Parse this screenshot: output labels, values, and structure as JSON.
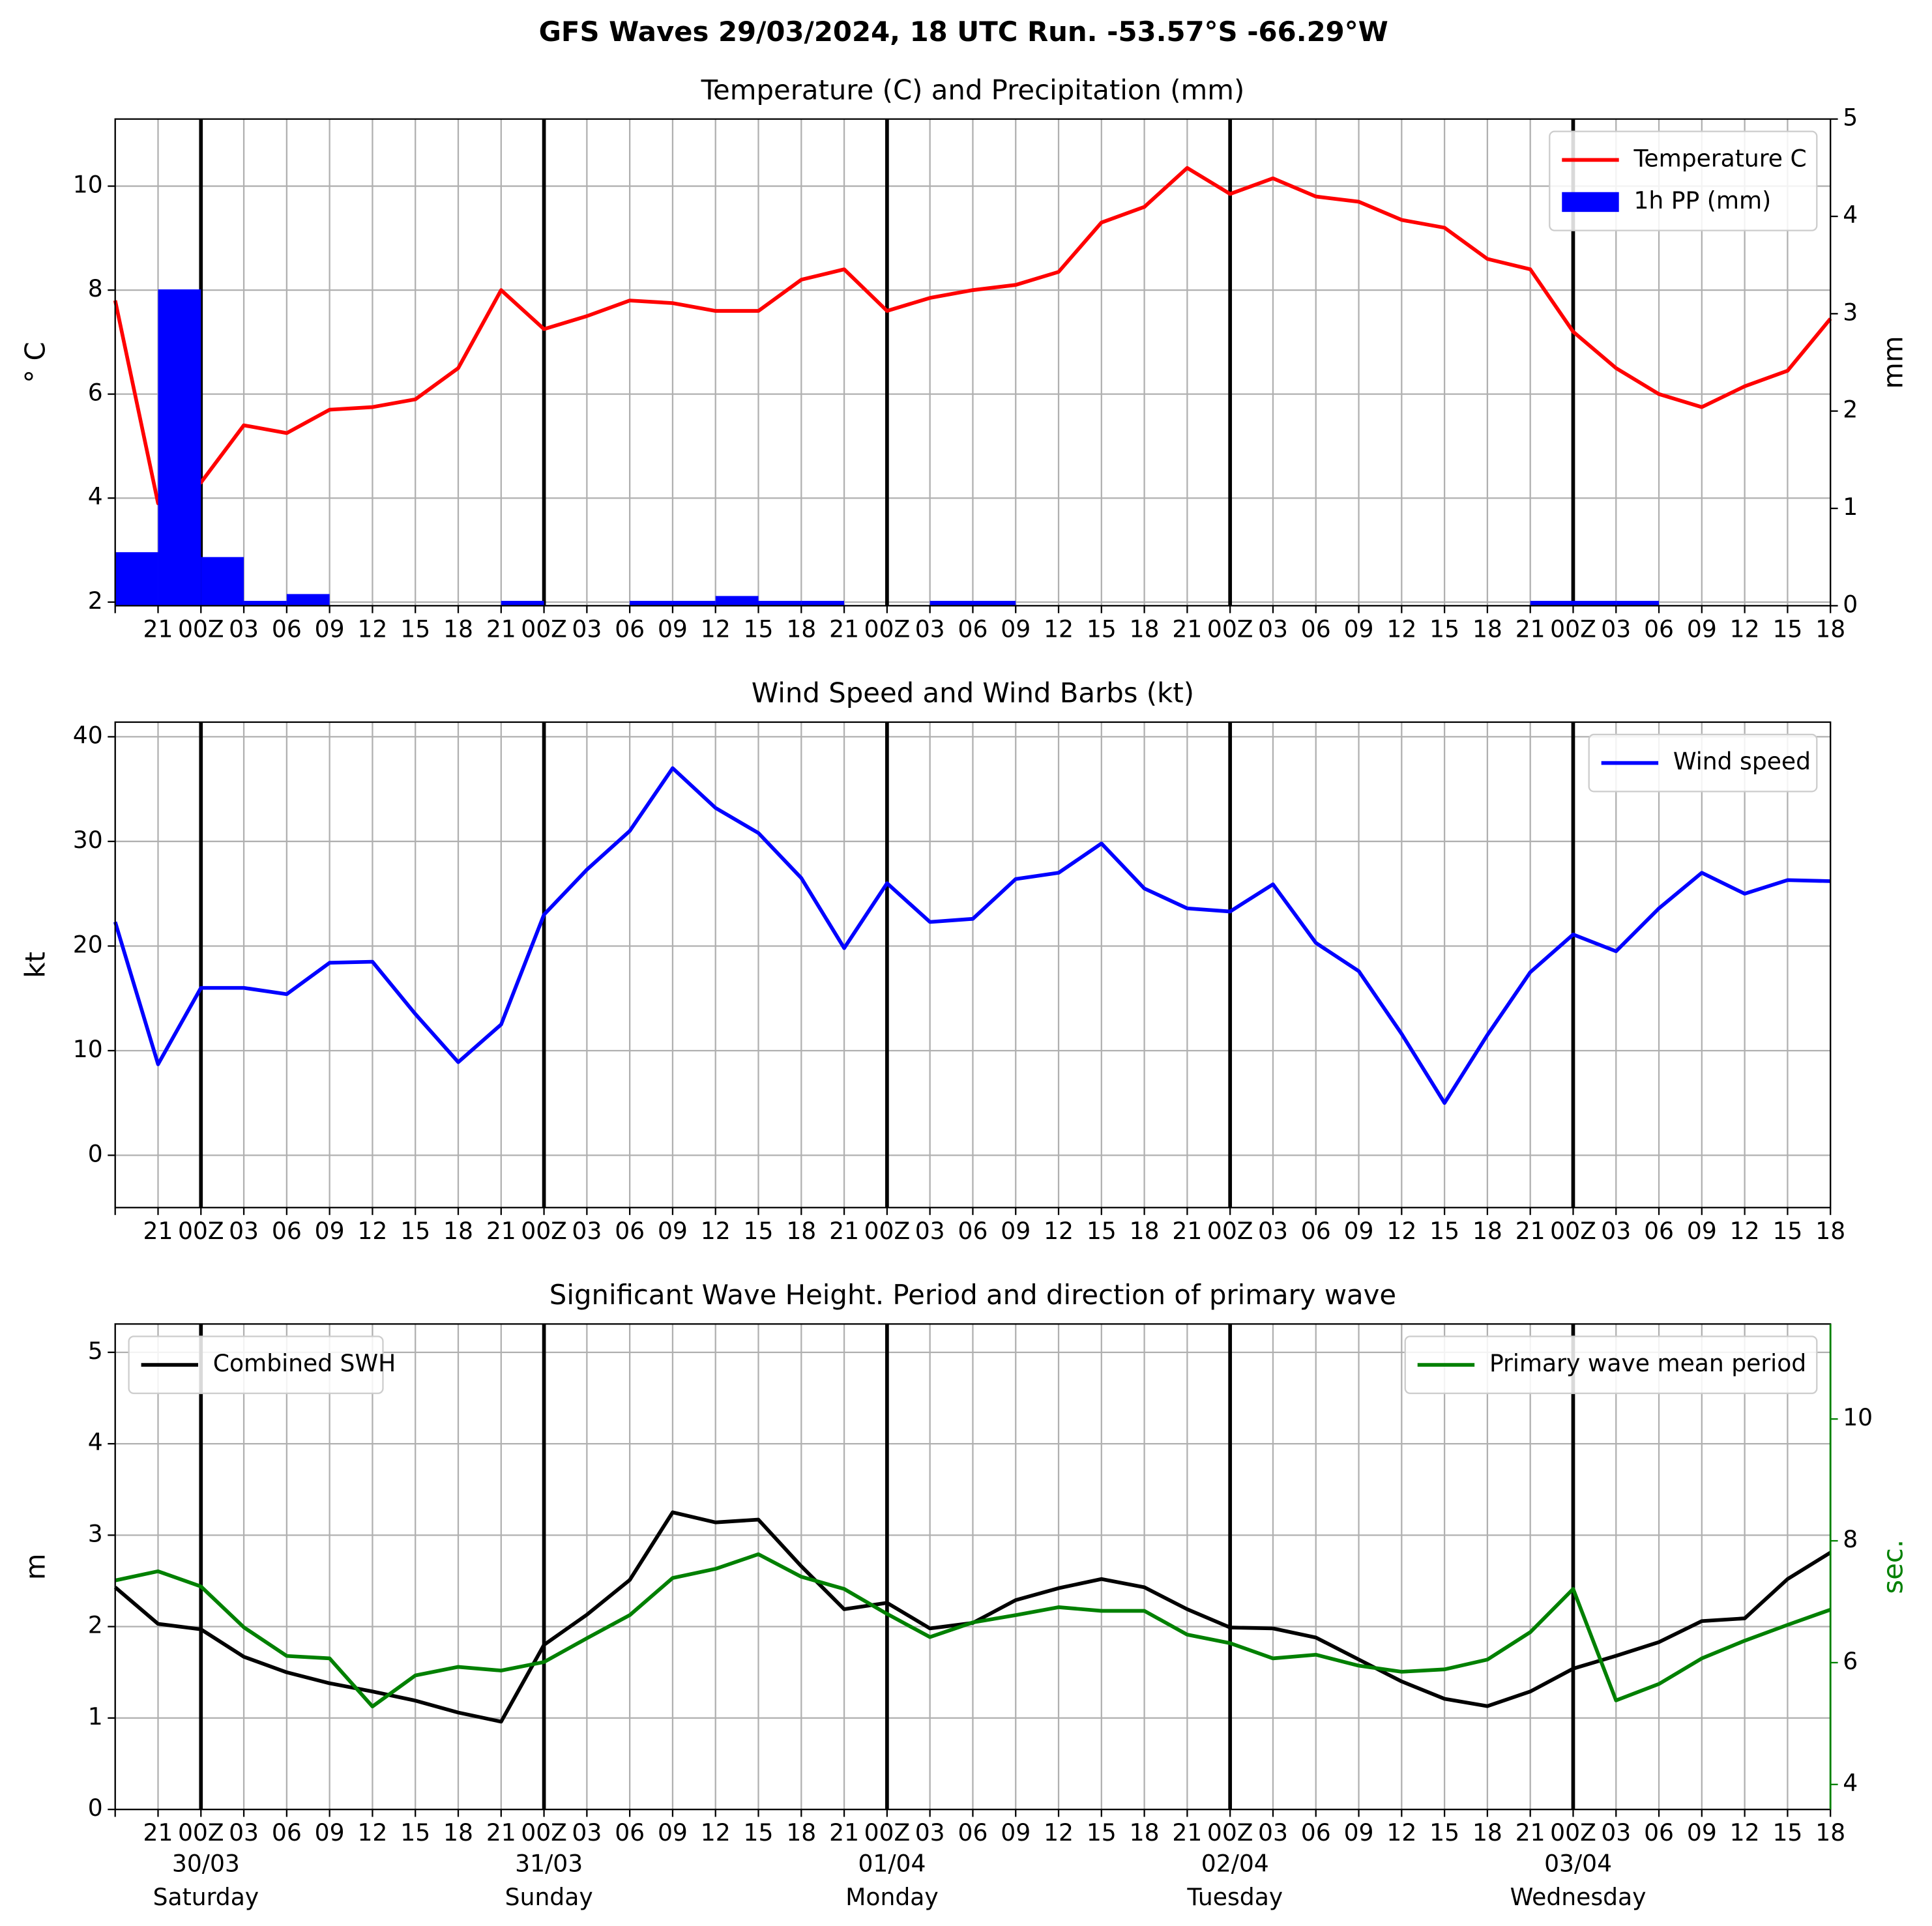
{
  "title": "GFS Waves 29/03/2024, 18 UTC Run. -53.57°S -66.29°W",
  "chart_data": [
    {
      "type": "line",
      "title": "Temperature (C) and Precipitation (mm)",
      "categories": [
        null,
        "21",
        "00Z",
        "03",
        "06",
        "09",
        "12",
        "15",
        "18",
        "21",
        "00Z",
        "03",
        "06",
        "09",
        "12",
        "15",
        "18",
        "21",
        "00Z",
        "03",
        "06",
        "09",
        "12",
        "15",
        "18",
        "21",
        "00Z",
        "03",
        "06",
        "09",
        "12",
        "15",
        "18",
        "21",
        "00Z",
        "03",
        "06",
        "09",
        "12",
        "15",
        "18"
      ],
      "series": [
        {
          "name": "Temperature C",
          "color": "#ff0000",
          "values": [
            7.8,
            3.9,
            4.3,
            5.4,
            5.25,
            5.7,
            5.75,
            5.9,
            6.5,
            8.0,
            7.25,
            7.5,
            7.8,
            7.75,
            7.6,
            7.6,
            8.2,
            8.4,
            7.6,
            7.85,
            8.0,
            8.1,
            8.35,
            9.3,
            9.6,
            10.35,
            9.85,
            10.15,
            9.8,
            9.7,
            9.35,
            9.2,
            8.6,
            8.4,
            7.2,
            6.5,
            6.0,
            5.75,
            6.15,
            6.45,
            7.45
          ]
        },
        {
          "name": "1h PP (mm)",
          "type": "bar",
          "axis": "y2",
          "color": "#0000ff",
          "values": [
            0.55,
            3.25,
            0.5,
            0.05,
            0.12,
            0,
            0,
            0,
            0,
            0.05,
            0,
            0,
            0.05,
            0.05,
            0.1,
            0.05,
            0.05,
            0,
            0,
            0.05,
            0.05,
            0,
            0,
            0,
            0,
            0,
            0,
            0,
            0,
            0,
            0,
            0,
            0,
            0.05,
            0.05,
            0.05,
            0,
            0,
            0,
            0,
            0
          ]
        }
      ],
      "ylabel": "° C",
      "y2label": "mm",
      "ylim": [
        1.93,
        11.29
      ],
      "yticks": [
        2,
        4,
        6,
        8,
        10
      ],
      "y2lim": [
        0,
        5
      ],
      "y2ticks": [
        0,
        1,
        2,
        3,
        4,
        5
      ],
      "grid": true,
      "legend": "upper right"
    },
    {
      "type": "line",
      "title": "Wind Speed and Wind Barbs (kt)",
      "categories": [
        null,
        "21",
        "00Z",
        "03",
        "06",
        "09",
        "12",
        "15",
        "18",
        "21",
        "00Z",
        "03",
        "06",
        "09",
        "12",
        "15",
        "18",
        "21",
        "00Z",
        "03",
        "06",
        "09",
        "12",
        "15",
        "18",
        "21",
        "00Z",
        "03",
        "06",
        "09",
        "12",
        "15",
        "18",
        "21",
        "00Z",
        "03",
        "06",
        "09",
        "12",
        "15",
        "18"
      ],
      "series": [
        {
          "name": "Wind speed",
          "color": "#0000ff",
          "values": [
            22.3,
            8.7,
            16,
            16,
            15.4,
            18.4,
            18.5,
            13.5,
            8.9,
            12.5,
            23,
            27.3,
            31,
            37,
            33.2,
            30.8,
            26.5,
            19.8,
            26,
            22.3,
            22.6,
            26.4,
            27,
            29.8,
            25.5,
            23.6,
            23.3,
            25.9,
            20.3,
            17.6,
            11.6,
            5,
            11.5,
            17.5,
            21.1,
            19.5,
            23.6,
            27,
            25,
            26.3,
            26.2
          ]
        }
      ],
      "ylabel": "kt",
      "ylim": [
        -5,
        41.4
      ],
      "yticks": [
        0,
        10,
        20,
        30,
        40
      ],
      "grid": true,
      "legend": "upper right"
    },
    {
      "type": "line",
      "title": "Significant Wave Height. Period and direction of primary wave",
      "categories": [
        null,
        "21",
        "00Z",
        "03",
        "06",
        "09",
        "12",
        "15",
        "18",
        "21",
        "00Z",
        "03",
        "06",
        "09",
        "12",
        "15",
        "18",
        "21",
        "00Z",
        "03",
        "06",
        "09",
        "12",
        "15",
        "18",
        "21",
        "00Z",
        "03",
        "06",
        "09",
        "12",
        "15",
        "18",
        "21",
        "00Z",
        "03",
        "06",
        "09",
        "12",
        "15",
        "18"
      ],
      "day_labels": [
        [
          "30/03",
          "Saturday"
        ],
        [
          "31/03",
          "Sunday"
        ],
        [
          "01/04",
          "Monday"
        ],
        [
          "02/04",
          "Tuesday"
        ],
        [
          "03/04",
          "Wednesday"
        ]
      ],
      "series": [
        {
          "name": "Combined SWH",
          "color": "#000000",
          "legend": "upper left",
          "values": [
            2.43,
            2.03,
            1.97,
            1.67,
            1.5,
            1.38,
            1.29,
            1.19,
            1.06,
            0.96,
            1.8,
            2.13,
            2.51,
            3.25,
            3.14,
            3.17,
            2.66,
            2.19,
            2.26,
            1.98,
            2.04,
            2.29,
            2.42,
            2.52,
            2.43,
            2.19,
            1.99,
            1.98,
            1.88,
            1.64,
            1.4,
            1.21,
            1.13,
            1.29,
            1.54,
            1.68,
            1.83,
            2.06,
            2.09,
            2.52,
            2.81
          ]
        },
        {
          "name": "Primary wave mean period",
          "color": "#008000",
          "axis": "y2",
          "legend": "upper right",
          "values": [
            7.35,
            7.5,
            7.25,
            6.58,
            6.11,
            6.07,
            5.28,
            5.79,
            5.93,
            5.87,
            6.01,
            6.4,
            6.78,
            7.39,
            7.54,
            7.78,
            7.41,
            7.21,
            6.8,
            6.42,
            6.66,
            6.78,
            6.91,
            6.85,
            6.85,
            6.46,
            6.32,
            6.07,
            6.13,
            5.95,
            5.85,
            5.89,
            6.05,
            6.5,
            7.21,
            5.38,
            5.65,
            6.07,
            6.36,
            6.62,
            6.87
          ]
        }
      ],
      "ylabel": "m",
      "y2label": "sec.",
      "ylim": [
        0,
        5.31
      ],
      "yticks": [
        0,
        1,
        2,
        3,
        4,
        5
      ],
      "y2lim": [
        3.59,
        11.56
      ],
      "y2ticks": [
        4,
        6,
        8,
        10
      ],
      "grid": true
    }
  ]
}
